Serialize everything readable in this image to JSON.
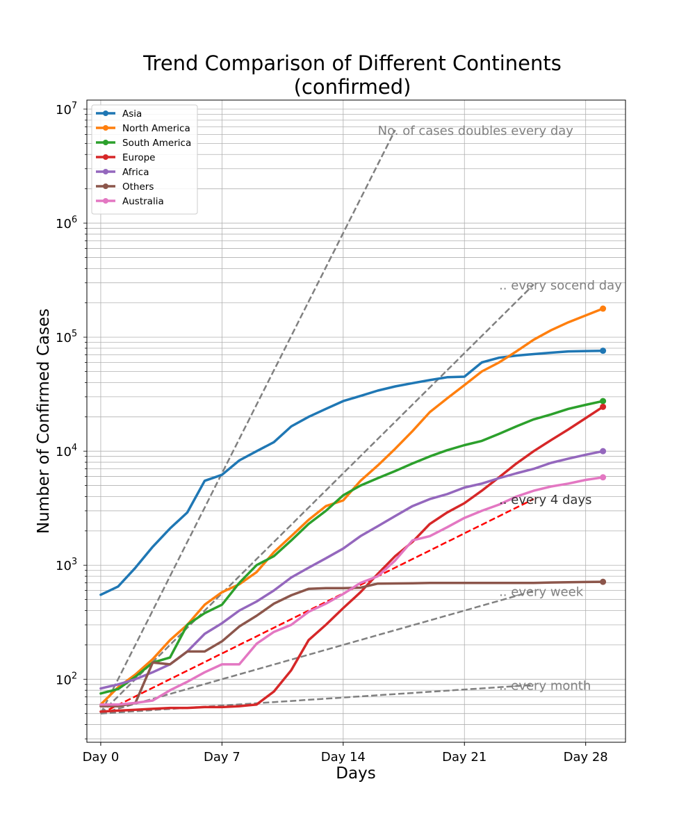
{
  "chart_data": {
    "type": "line",
    "title_line1": "Trend Comparison of Different Continents",
    "title_line2": "(confirmed)",
    "xlabel": "Days",
    "ylabel": "Number of Confirmed Cases",
    "yscale": "log",
    "xlim": [
      -0.8,
      30.3
    ],
    "ylim": [
      28,
      12000000
    ],
    "grid": true,
    "legend_position": "upper-left",
    "x_ticks": [
      {
        "value": 0,
        "label": "Day 0"
      },
      {
        "value": 7,
        "label": "Day 7"
      },
      {
        "value": 14,
        "label": "Day 14"
      },
      {
        "value": 21,
        "label": "Day 21"
      },
      {
        "value": 28,
        "label": "Day 28"
      }
    ],
    "y_ticks": [
      {
        "value": 100,
        "base": "10",
        "exp": "2"
      },
      {
        "value": 1000,
        "base": "10",
        "exp": "3"
      },
      {
        "value": 10000,
        "base": "10",
        "exp": "4"
      },
      {
        "value": 100000,
        "base": "10",
        "exp": "5"
      },
      {
        "value": 1000000,
        "base": "10",
        "exp": "6"
      },
      {
        "value": 10000000,
        "base": "10",
        "exp": "7"
      }
    ],
    "series": [
      {
        "name": "Asia",
        "color": "#1f77b4",
        "x": [
          0,
          1,
          2,
          3,
          4,
          5,
          6,
          7,
          8,
          9,
          10,
          11,
          12,
          13,
          14,
          15,
          16,
          17,
          18,
          19,
          20,
          21,
          22,
          23,
          24,
          25,
          26,
          27,
          28,
          29
        ],
        "values": [
          550,
          650,
          950,
          1450,
          2100,
          2900,
          5500,
          6200,
          8300,
          10000,
          12000,
          16500,
          20000,
          23500,
          27500,
          30500,
          34000,
          37000,
          39500,
          42000,
          44500,
          45000,
          60000,
          66000,
          69000,
          71000,
          73000,
          75000,
          75500,
          76000
        ]
      },
      {
        "name": "North America",
        "color": "#ff7f0e",
        "x": [
          0,
          1,
          2,
          3,
          4,
          5,
          6,
          7,
          8,
          9,
          10,
          11,
          12,
          13,
          14,
          15,
          16,
          17,
          18,
          19,
          20,
          21,
          22,
          23,
          24,
          25,
          26,
          27,
          28,
          29
        ],
        "values": [
          60,
          85,
          110,
          150,
          220,
          300,
          450,
          580,
          680,
          870,
          1300,
          1800,
          2500,
          3300,
          3700,
          5500,
          7500,
          10500,
          15000,
          22000,
          29000,
          38000,
          50000,
          60000,
          75000,
          95000,
          115000,
          135000,
          155000,
          178000
        ]
      },
      {
        "name": "South America",
        "color": "#2ca02c",
        "x": [
          0,
          1,
          2,
          3,
          4,
          5,
          6,
          7,
          8,
          9,
          10,
          11,
          12,
          13,
          14,
          15,
          16,
          17,
          18,
          19,
          20,
          21,
          22,
          23,
          24,
          25,
          26,
          27,
          28,
          29
        ],
        "values": [
          75,
          82,
          105,
          140,
          155,
          300,
          380,
          450,
          700,
          1000,
          1200,
          1650,
          2300,
          3000,
          4100,
          5000,
          5800,
          6700,
          7800,
          9000,
          10200,
          11300,
          12300,
          14200,
          16500,
          19000,
          21000,
          23500,
          25500,
          27500
        ]
      },
      {
        "name": "Europe",
        "color": "#d62728",
        "x": [
          0,
          1,
          2,
          3,
          4,
          5,
          6,
          7,
          8,
          9,
          10,
          11,
          12,
          13,
          14,
          15,
          16,
          17,
          18,
          19,
          20,
          21,
          22,
          23,
          24,
          25,
          26,
          27,
          28,
          29
        ],
        "values": [
          52,
          53,
          54,
          55,
          56,
          56,
          57,
          57,
          58,
          60,
          78,
          120,
          220,
          300,
          420,
          580,
          840,
          1200,
          1600,
          2300,
          2900,
          3500,
          4500,
          5900,
          7800,
          10000,
          12500,
          15500,
          19500,
          24500
        ]
      },
      {
        "name": "Africa",
        "color": "#9467bd",
        "x": [
          0,
          1,
          2,
          3,
          4,
          5,
          6,
          7,
          8,
          9,
          10,
          11,
          12,
          13,
          14,
          15,
          16,
          17,
          18,
          19,
          20,
          21,
          22,
          23,
          24,
          25,
          26,
          27,
          28,
          29
        ],
        "values": [
          83,
          90,
          100,
          115,
          135,
          175,
          250,
          310,
          400,
          480,
          600,
          780,
          950,
          1150,
          1400,
          1800,
          2200,
          2700,
          3300,
          3800,
          4200,
          4800,
          5200,
          5800,
          6400,
          7000,
          7900,
          8600,
          9300,
          10000
        ]
      },
      {
        "name": "Others",
        "color": "#8c564b",
        "x": [
          0,
          1,
          2,
          3,
          4,
          5,
          6,
          7,
          8,
          9,
          10,
          11,
          12,
          13,
          14,
          15,
          16,
          17,
          18,
          19,
          20,
          21,
          22,
          23,
          24,
          25,
          26,
          27,
          28,
          29
        ],
        "values": [
          58,
          58,
          62,
          140,
          135,
          175,
          175,
          215,
          290,
          360,
          460,
          545,
          620,
          630,
          630,
          635,
          690,
          692,
          695,
          700,
          700,
          700,
          700,
          700,
          700,
          700,
          705,
          708,
          712,
          715
        ]
      },
      {
        "name": "Australia",
        "color": "#e377c2",
        "x": [
          0,
          1,
          2,
          3,
          4,
          5,
          6,
          7,
          8,
          9,
          10,
          11,
          12,
          13,
          14,
          15,
          16,
          17,
          18,
          19,
          20,
          21,
          22,
          23,
          24,
          25,
          26,
          27,
          28,
          29
        ],
        "values": [
          60,
          60,
          62,
          65,
          80,
          95,
          115,
          135,
          135,
          205,
          260,
          300,
          390,
          460,
          560,
          700,
          800,
          1100,
          1650,
          1800,
          2150,
          2600,
          3000,
          3400,
          4000,
          4500,
          4900,
          5200,
          5600,
          5900
        ]
      }
    ],
    "reference_lines": [
      {
        "label": "No. of cases doubles every day",
        "doubling_days": 1,
        "x_end": 17,
        "y_start": 50,
        "color": "#808080",
        "text_color": "#808080",
        "anchor_x": 16
      },
      {
        "label": ".. every socend day",
        "doubling_days": 2,
        "x_end": 25,
        "y_start": 50,
        "color": "#808080",
        "text_color": "#808080",
        "anchor_x": 23
      },
      {
        "label": ".. every 4 days",
        "doubling_days": 4,
        "x_end": 25,
        "y_start": 50,
        "color": "#ff0000",
        "text_color": "#333333",
        "anchor_x": 23
      },
      {
        "label": ".. every week",
        "doubling_days": 7,
        "x_end": 25,
        "y_start": 50,
        "color": "#808080",
        "text_color": "#808080",
        "anchor_x": 23
      },
      {
        "label": ".. every month",
        "doubling_days": 30,
        "x_end": 25,
        "y_start": 50,
        "color": "#808080",
        "text_color": "#808080",
        "anchor_x": 23
      }
    ]
  }
}
